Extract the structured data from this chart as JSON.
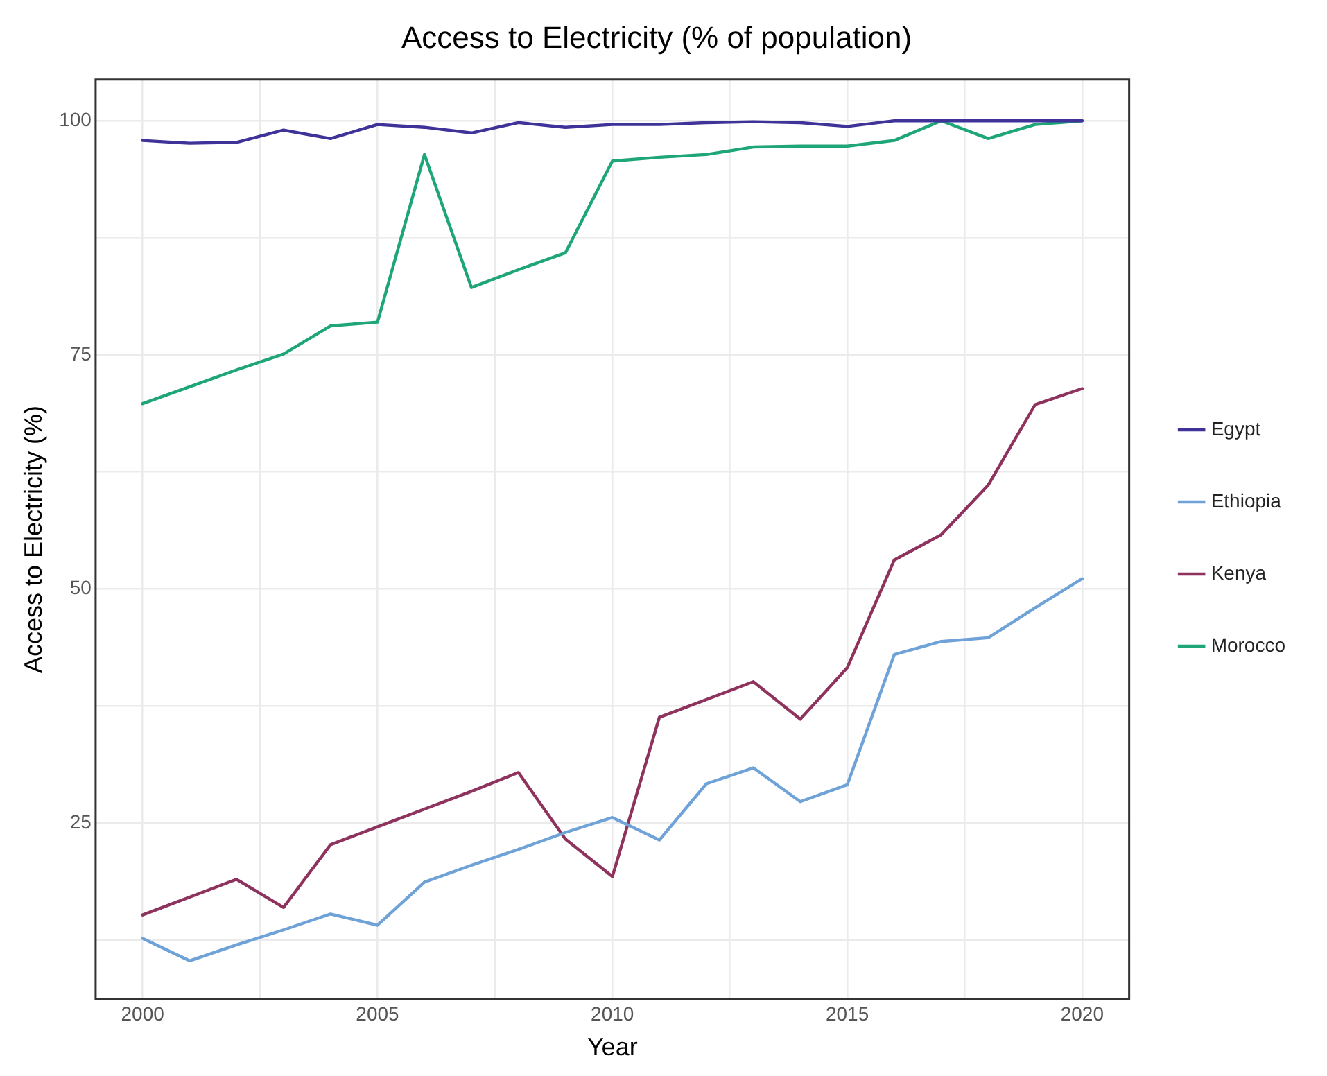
{
  "chart_data": {
    "type": "line",
    "title": "Access to Electricity (% of population)",
    "xlabel": "Year",
    "ylabel": "Access to Electricity (%)",
    "x": [
      2000,
      2001,
      2002,
      2003,
      2004,
      2005,
      2006,
      2007,
      2008,
      2009,
      2010,
      2011,
      2012,
      2013,
      2014,
      2015,
      2016,
      2017,
      2018,
      2019,
      2020
    ],
    "series": [
      {
        "name": "Egypt",
        "color": "#3f3399",
        "values": [
          97.9,
          97.6,
          97.7,
          99.0,
          98.1,
          99.6,
          99.3,
          98.7,
          99.8,
          99.3,
          99.6,
          99.6,
          99.8,
          99.9,
          99.8,
          99.4,
          100,
          100,
          100,
          100,
          100
        ]
      },
      {
        "name": "Ethiopia",
        "color": "#6fa3d8",
        "values": [
          12.7,
          10.3,
          12.0,
          13.6,
          15.3,
          14.1,
          18.7,
          20.5,
          22.2,
          24.0,
          25.6,
          23.2,
          29.2,
          30.9,
          27.3,
          29.1,
          43.0,
          44.4,
          44.8,
          48.0,
          51.1
        ]
      },
      {
        "name": "Kenya",
        "color": "#8e325e",
        "values": [
          15.2,
          17.1,
          19.0,
          16.0,
          22.7,
          24.6,
          26.5,
          28.4,
          30.4,
          23.3,
          19.3,
          36.3,
          38.2,
          40.1,
          36.1,
          41.6,
          53.1,
          55.8,
          61.1,
          69.7,
          71.4
        ]
      },
      {
        "name": "Morocco",
        "color": "#1fa57a",
        "values": [
          69.8,
          71.6,
          73.4,
          75.1,
          78.1,
          78.5,
          96.4,
          82.2,
          84.1,
          85.9,
          95.7,
          96.1,
          96.4,
          97.2,
          97.3,
          97.3,
          97.9,
          100,
          98.1,
          99.6,
          100
        ]
      }
    ],
    "xlim": [
      1999,
      2021
    ],
    "xticks": [
      2000,
      {
        "value": 2002.5,
        "label": null
      },
      2005,
      {
        "value": 2007.5,
        "label": null
      },
      2010,
      {
        "value": 2012.5,
        "label": null
      },
      2015,
      {
        "value": 2017.5,
        "label": null
      },
      2020
    ],
    "ylim": [
      6.2,
      104.4
    ],
    "yticks": [
      {
        "value": 12.5,
        "label": null
      },
      25,
      {
        "value": 37.5,
        "label": null
      },
      50,
      {
        "value": 62.5,
        "label": null
      },
      75,
      {
        "value": 87.5,
        "label": null
      },
      100
    ],
    "grid": true,
    "legend": "right",
    "marker": "none",
    "line_style": "solid"
  }
}
